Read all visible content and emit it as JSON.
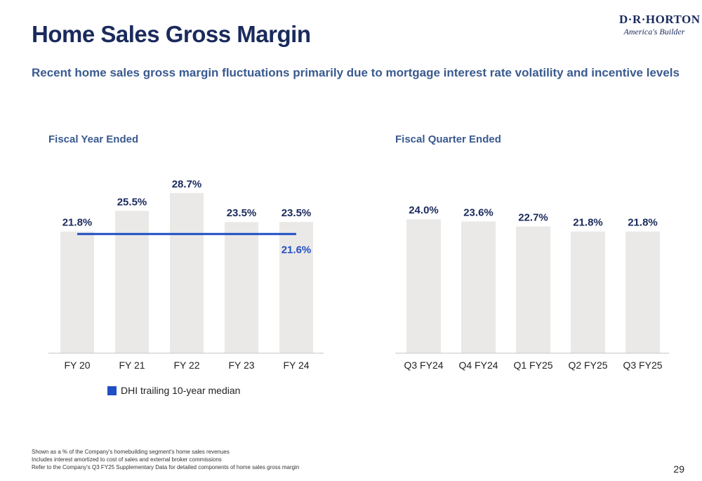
{
  "page": {
    "title": "Home Sales Gross Margin",
    "subtitle": "Recent home sales gross margin fluctuations primarily due to mortgage interest rate volatility and incentive levels",
    "page_number": "29",
    "footnotes": [
      "Shown as a % of the Company's homebuilding segment's home sales revenues",
      "Includes interest amortized to cost of sales and external broker commissions",
      "Refer to the Company's Q3 FY25 Supplementary Data for detailed components of home sales gross margin"
    ]
  },
  "logo": {
    "name": "D·R·HORTON",
    "tagline": "America's Builder"
  },
  "colors": {
    "title": "#1a2a5c",
    "subtitle": "#3a5a8f",
    "bar": "#ebe9e7",
    "median_line": "#1f4fc4",
    "median_label": "#1f4fc4",
    "value_label": "#1a2a5c",
    "axis": "#cfcfcf"
  },
  "chart_data": [
    {
      "type": "bar",
      "title": "Fiscal Year Ended",
      "categories": [
        "FY 20",
        "FY 21",
        "FY 22",
        "FY 23",
        "FY 24"
      ],
      "values": [
        21.8,
        25.5,
        28.7,
        23.5,
        23.5
      ],
      "value_labels": [
        "21.8%",
        "25.5%",
        "28.7%",
        "23.5%",
        "23.5%"
      ],
      "unit": "%",
      "reference_line": {
        "name": "DHI trailing 10-year median",
        "value": 21.6,
        "label": "21.6%"
      },
      "legend": {
        "position": "bottom-left",
        "entries": [
          "DHI trailing 10-year median"
        ]
      },
      "ylim": [
        0,
        30
      ],
      "grid": false
    },
    {
      "type": "bar",
      "title": "Fiscal Quarter Ended",
      "categories": [
        "Q3 FY24",
        "Q4 FY24",
        "Q1 FY25",
        "Q2 FY25",
        "Q3 FY25"
      ],
      "values": [
        24.0,
        23.6,
        22.7,
        21.8,
        21.8
      ],
      "value_labels": [
        "24.0%",
        "23.6%",
        "22.7%",
        "21.8%",
        "21.8%"
      ],
      "unit": "%",
      "ylim": [
        0,
        30
      ],
      "grid": false
    }
  ]
}
